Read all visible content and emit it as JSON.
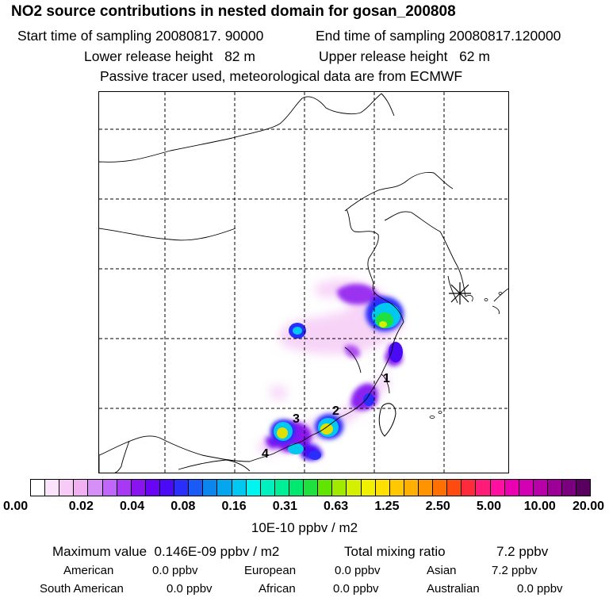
{
  "title": "NO2 source contributions in nested domain for gosan_200808",
  "start_label": "Start time of sampling",
  "start_value": "20080817. 90000",
  "end_label": "End time of sampling",
  "end_value": "20080817.120000",
  "lower_label": "Lower release height",
  "lower_value": "82 m",
  "upper_label": "Upper release height",
  "upper_value": "62 m",
  "tracer_note": "Passive tracer used, meteorological data are from ECMWF",
  "map": {
    "receptor": "gosan",
    "source_labels": [
      "1",
      "2",
      "3",
      "4"
    ]
  },
  "colorbar": {
    "colors": [
      "#ffffff",
      "#fbe4fb",
      "#f6cbf6",
      "#f0b0f2",
      "#d58ff6",
      "#c066f8",
      "#a838f4",
      "#8a14f0",
      "#6a04f4",
      "#4a0af6",
      "#2a2efa",
      "#1a5af6",
      "#0a86ee",
      "#04a6ee",
      "#00c8f0",
      "#00f4f0",
      "#00f0c0",
      "#00ee96",
      "#00e870",
      "#20e040",
      "#60e400",
      "#a0ea00",
      "#d4f000",
      "#f0f000",
      "#ffe000",
      "#ffc800",
      "#ffb000",
      "#ff9400",
      "#ff7000",
      "#ff4a10",
      "#ff2a3c",
      "#ff1c78",
      "#ff10a0",
      "#ea00b0",
      "#d400b4",
      "#b800a8",
      "#9c0096",
      "#7a0080",
      "#580060"
    ],
    "ticks": [
      "0.00",
      "0.02",
      "0.04",
      "0.08",
      "0.16",
      "0.31",
      "0.63",
      "1.25",
      "2.50",
      "5.00",
      "10.00",
      "20.00"
    ],
    "units": "10E-10 ppbv / m2"
  },
  "stats": {
    "max_label": "Maximum value",
    "max_value": "0.146E-09 ppbv / m2",
    "total_label": "Total mixing ratio",
    "total_value": "7.2 ppbv"
  },
  "regions": [
    {
      "name": "American",
      "value": "0.0 ppbv"
    },
    {
      "name": "European",
      "value": "0.0 ppbv"
    },
    {
      "name": "Asian",
      "value": "7.2 ppbv"
    },
    {
      "name": "South American",
      "value": "0.0 ppbv"
    },
    {
      "name": "African",
      "value": "0.0 ppbv"
    },
    {
      "name": "Australian",
      "value": "0.0 ppbv"
    }
  ]
}
